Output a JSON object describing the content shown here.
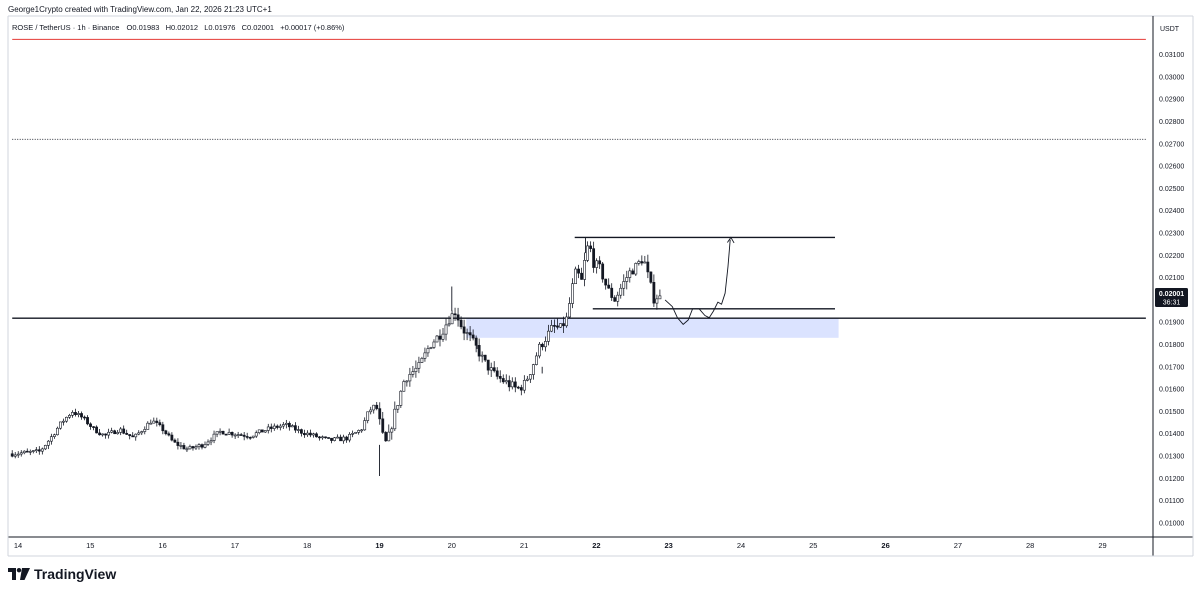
{
  "credit": "George1Crypto created with TradingView.com, Jan 22, 2026 21:23 UTC+1",
  "legend": {
    "symbol": "ROSE / TetherUS · 1h · Binance",
    "open": "O0.01983",
    "high": "H0.02012",
    "low": "L0.01976",
    "close": "C0.02001",
    "change": "+0.00017 (+0.86%)"
  },
  "currency_label": "USDT",
  "price_tag": {
    "price": "0.02001",
    "countdown": "36:31"
  },
  "brand": "TradingView",
  "colors": {
    "up": "#131722",
    "down": "#131722",
    "zone": "#dbe3ff",
    "top_line": "#e53935",
    "tag_bg": "#131722"
  },
  "chart_data": {
    "type": "candlestick",
    "title": "ROSE / TetherUS · 1h · Binance",
    "xlabel": "",
    "ylabel": "USDT",
    "ylim": [
      0.0093,
      0.0321
    ],
    "xlim": [
      14.0,
      29.6
    ],
    "y_ticks": [
      "0.03100",
      "0.03000",
      "0.02900",
      "0.02800",
      "0.02700",
      "0.02600",
      "0.02500",
      "0.02400",
      "0.02300",
      "0.02200",
      "0.02100",
      "0.02000",
      "0.01900",
      "0.01800",
      "0.01700",
      "0.01600",
      "0.01500",
      "0.01400",
      "0.01300",
      "0.01200",
      "0.01100",
      "0.01000"
    ],
    "x_ticks": [
      {
        "v": 14,
        "label": "14"
      },
      {
        "v": 15,
        "label": "15"
      },
      {
        "v": 16,
        "label": "16"
      },
      {
        "v": 17,
        "label": "17"
      },
      {
        "v": 18,
        "label": "18"
      },
      {
        "v": 19,
        "label": "19"
      },
      {
        "v": 20,
        "label": "20"
      },
      {
        "v": 21,
        "label": "21"
      },
      {
        "v": 22,
        "label": "22"
      },
      {
        "v": 23,
        "label": "23"
      },
      {
        "v": 24,
        "label": "24"
      },
      {
        "v": 25,
        "label": "25"
      },
      {
        "v": 26,
        "label": "26"
      },
      {
        "v": 27,
        "label": "27"
      },
      {
        "v": 28,
        "label": "28"
      },
      {
        "v": 29,
        "label": "29"
      }
    ],
    "bold_x_ticks": [
      "19",
      "22",
      "23",
      "26"
    ],
    "close_path": [
      [
        13.92,
        0.0131
      ],
      [
        14.1,
        0.01315
      ],
      [
        14.3,
        0.0132
      ],
      [
        14.45,
        0.0138
      ],
      [
        14.6,
        0.0145
      ],
      [
        14.75,
        0.015
      ],
      [
        14.9,
        0.0147
      ],
      [
        15.05,
        0.0142
      ],
      [
        15.2,
        0.0139
      ],
      [
        15.4,
        0.0142
      ],
      [
        15.6,
        0.0138
      ],
      [
        15.85,
        0.0146
      ],
      [
        16.0,
        0.0142
      ],
      [
        16.15,
        0.0136
      ],
      [
        16.35,
        0.0133
      ],
      [
        16.55,
        0.0135
      ],
      [
        16.8,
        0.0141
      ],
      [
        17.0,
        0.014
      ],
      [
        17.2,
        0.0139
      ],
      [
        17.45,
        0.0142
      ],
      [
        17.7,
        0.0144
      ],
      [
        17.9,
        0.0141
      ],
      [
        18.1,
        0.0139
      ],
      [
        18.3,
        0.0137
      ],
      [
        18.55,
        0.0138
      ],
      [
        18.75,
        0.0142
      ],
      [
        18.85,
        0.015
      ],
      [
        18.95,
        0.0153
      ],
      [
        19.05,
        0.0138
      ],
      [
        19.1,
        0.0135
      ],
      [
        19.2,
        0.0148
      ],
      [
        19.35,
        0.0165
      ],
      [
        19.55,
        0.017
      ],
      [
        19.7,
        0.018
      ],
      [
        19.85,
        0.0185
      ],
      [
        19.95,
        0.0191
      ],
      [
        20.05,
        0.0195
      ],
      [
        20.15,
        0.0187
      ],
      [
        20.25,
        0.0183
      ],
      [
        20.35,
        0.0178
      ],
      [
        20.45,
        0.0172
      ],
      [
        20.6,
        0.0166
      ],
      [
        20.75,
        0.0163
      ],
      [
        20.9,
        0.016
      ],
      [
        21.0,
        0.0162
      ],
      [
        21.1,
        0.0169
      ],
      [
        21.2,
        0.0178
      ],
      [
        21.3,
        0.0183
      ],
      [
        21.4,
        0.0188
      ],
      [
        21.5,
        0.0187
      ],
      [
        21.6,
        0.0192
      ],
      [
        21.65,
        0.0203
      ],
      [
        21.72,
        0.0213
      ],
      [
        21.8,
        0.0208
      ],
      [
        21.85,
        0.022
      ],
      [
        21.9,
        0.0226
      ],
      [
        21.95,
        0.0217
      ],
      [
        22.05,
        0.0214
      ],
      [
        22.15,
        0.0205
      ],
      [
        22.25,
        0.02
      ],
      [
        22.35,
        0.0206
      ],
      [
        22.45,
        0.0212
      ],
      [
        22.55,
        0.0215
      ],
      [
        22.65,
        0.0219
      ],
      [
        22.72,
        0.021
      ],
      [
        22.8,
        0.02
      ],
      [
        22.85,
        0.0202
      ],
      [
        22.9,
        0.02
      ]
    ],
    "dips": [
      [
        19.0,
        0.0135,
        0.0121
      ],
      [
        20.35,
        0.0183,
        0.0178
      ],
      [
        21.25,
        0.017,
        0.0167
      ]
    ],
    "spikes": [
      [
        20.0,
        0.0195,
        0.0206
      ],
      [
        21.85,
        0.0221,
        0.0228
      ]
    ],
    "horizontal_lines": [
      {
        "price": 0.01918,
        "from": 13.92,
        "to": 29.6,
        "style": "solid"
      },
      {
        "price": 0.0228,
        "from": 21.7,
        "to": 25.3,
        "style": "solid"
      },
      {
        "price": 0.0196,
        "from": 21.95,
        "to": 25.3,
        "style": "solid"
      },
      {
        "price": 0.0272,
        "from": 13.92,
        "to": 29.6,
        "style": "dotted"
      },
      {
        "price": 0.03168,
        "from": 13.92,
        "to": 29.6,
        "style": "solid-red"
      }
    ],
    "zone": {
      "from": 20.2,
      "to": 25.35,
      "top": 0.01918,
      "bottom": 0.0183
    },
    "projection_path": [
      [
        22.95,
        0.02
      ],
      [
        23.05,
        0.0197
      ],
      [
        23.12,
        0.0192
      ],
      [
        23.2,
        0.0189
      ],
      [
        23.27,
        0.0191
      ],
      [
        23.33,
        0.0196
      ],
      [
        23.42,
        0.0196
      ],
      [
        23.5,
        0.0193
      ],
      [
        23.56,
        0.0192
      ],
      [
        23.62,
        0.0195
      ],
      [
        23.68,
        0.0199
      ],
      [
        23.73,
        0.0198
      ],
      [
        23.78,
        0.0203
      ],
      [
        23.82,
        0.0215
      ],
      [
        23.85,
        0.0227
      ]
    ],
    "projection_arrow": {
      "tip": [
        23.86,
        0.0228
      ]
    }
  }
}
